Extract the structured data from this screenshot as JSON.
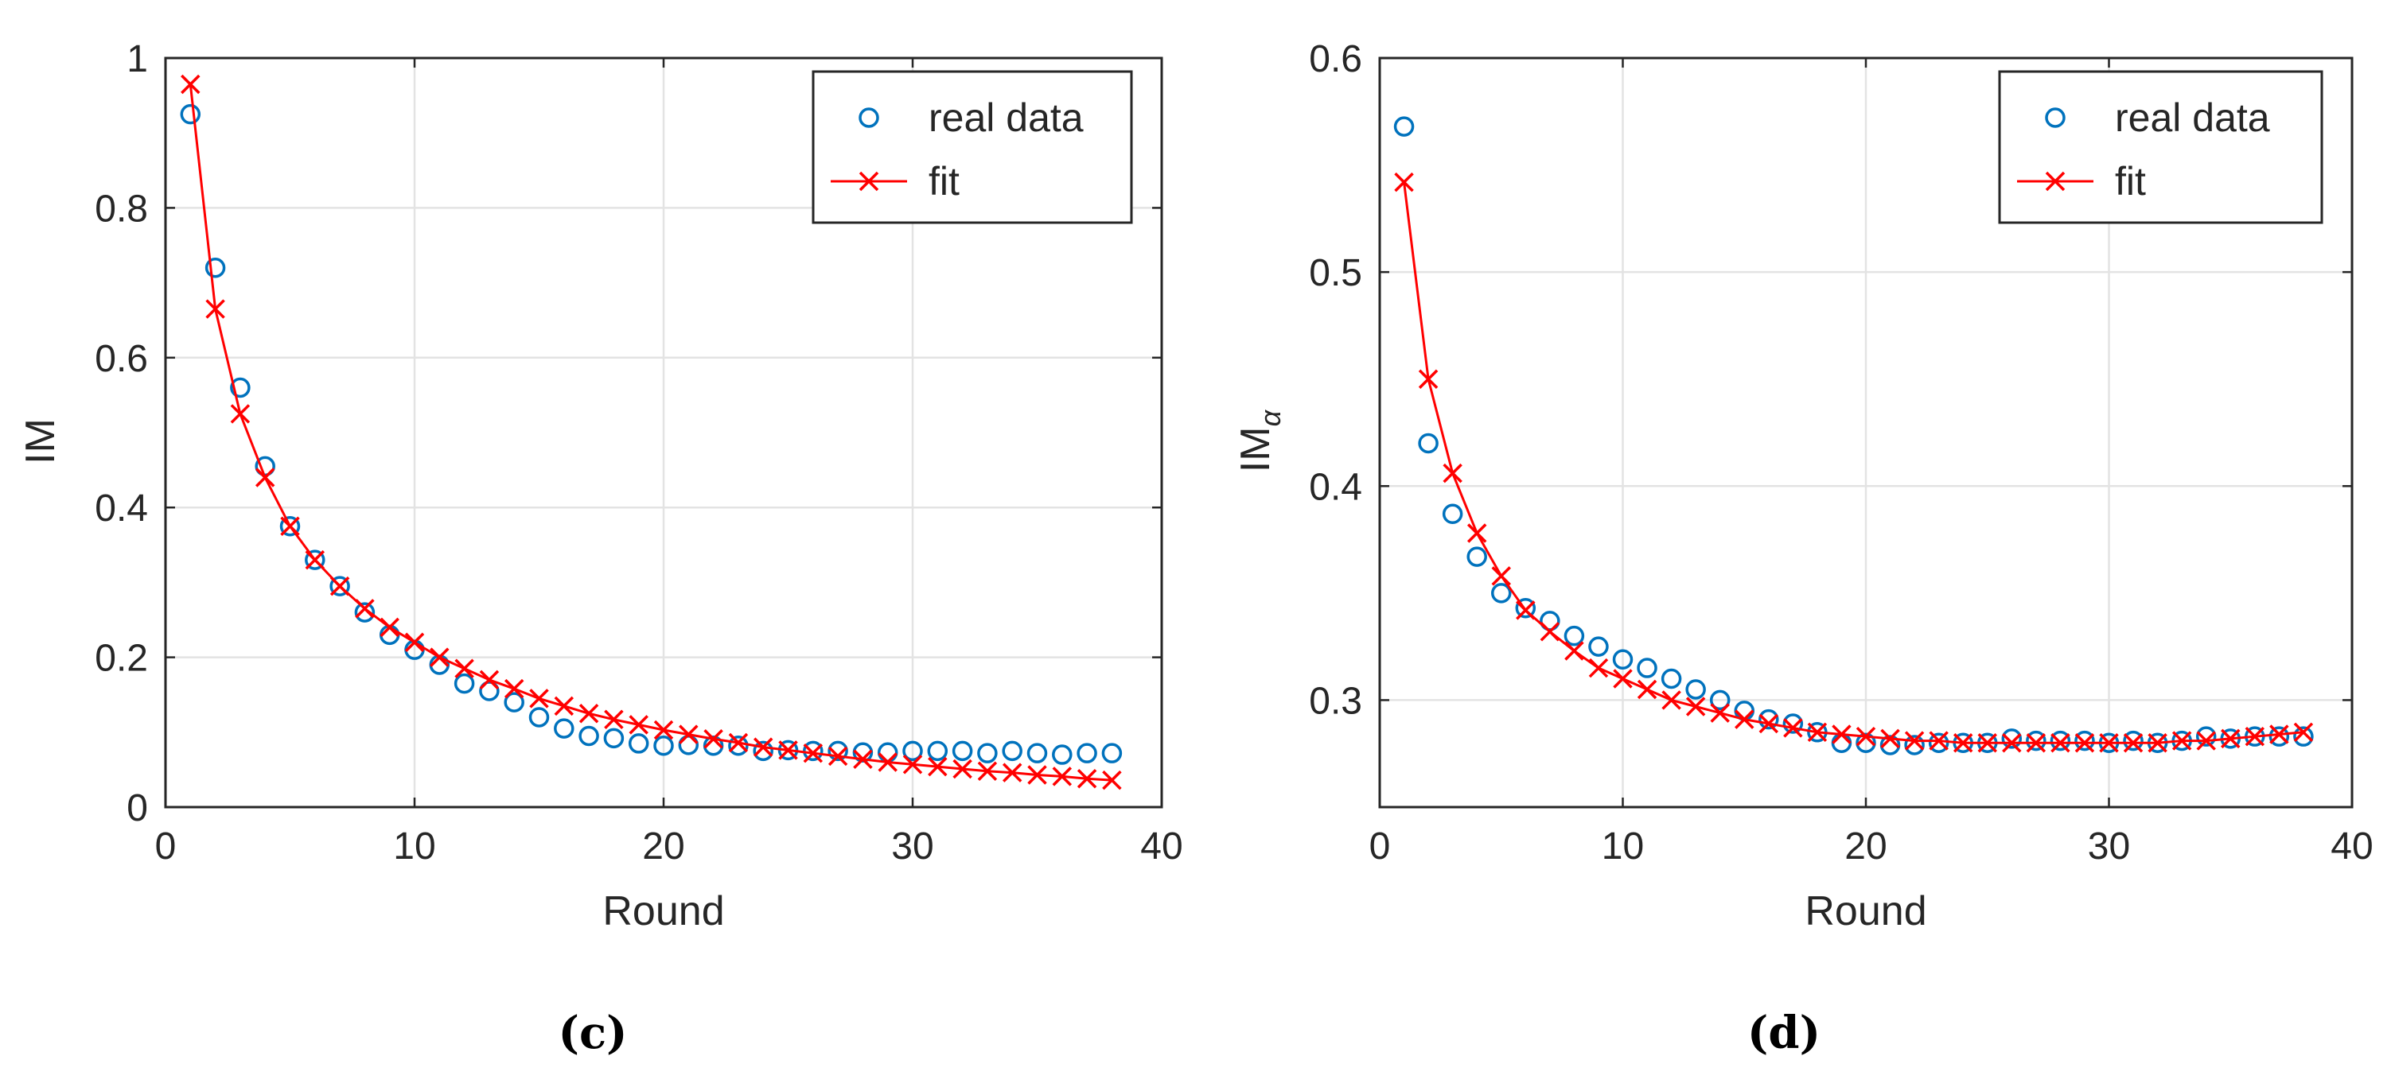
{
  "chart_data": [
    {
      "type": "scatter",
      "xlabel": "Round",
      "ylabel": "IM",
      "ylabel_sub": "",
      "caption": "(c)",
      "xlim": [
        0,
        40
      ],
      "ylim": [
        0,
        1
      ],
      "xticks": [
        0,
        10,
        20,
        30,
        40
      ],
      "xtick_labels": [
        "0",
        "10",
        "20",
        "30",
        "40"
      ],
      "yticks": [
        0,
        0.2,
        0.4,
        0.6,
        0.8,
        1
      ],
      "ytick_labels": [
        "0",
        "0.2",
        "0.4",
        "0.6",
        "0.8",
        "1"
      ],
      "grid": true,
      "legend": {
        "position": "top-right",
        "entries": [
          "real data",
          "fit"
        ]
      },
      "x": [
        1,
        2,
        3,
        4,
        5,
        6,
        7,
        8,
        9,
        10,
        11,
        12,
        13,
        14,
        15,
        16,
        17,
        18,
        19,
        20,
        21,
        22,
        23,
        24,
        25,
        26,
        27,
        28,
        29,
        30,
        31,
        32,
        33,
        34,
        35,
        36,
        37,
        38
      ],
      "series": [
        {
          "name": "real data",
          "style": "circle",
          "color": "#0072bd",
          "values": [
            0.925,
            0.72,
            0.56,
            0.455,
            0.375,
            0.33,
            0.295,
            0.26,
            0.23,
            0.21,
            0.19,
            0.165,
            0.155,
            0.14,
            0.12,
            0.105,
            0.095,
            0.092,
            0.085,
            0.082,
            0.083,
            0.082,
            0.082,
            0.075,
            0.076,
            0.075,
            0.075,
            0.073,
            0.073,
            0.075,
            0.075,
            0.075,
            0.072,
            0.075,
            0.072,
            0.07,
            0.072,
            0.072
          ]
        },
        {
          "name": "fit",
          "style": "line-x",
          "color": "#ff0000",
          "values": [
            0.965,
            0.665,
            0.525,
            0.44,
            0.375,
            0.33,
            0.295,
            0.265,
            0.24,
            0.22,
            0.2,
            0.185,
            0.17,
            0.158,
            0.145,
            0.135,
            0.125,
            0.117,
            0.11,
            0.103,
            0.097,
            0.091,
            0.086,
            0.08,
            0.076,
            0.072,
            0.068,
            0.064,
            0.06,
            0.057,
            0.054,
            0.051,
            0.048,
            0.046,
            0.043,
            0.041,
            0.038,
            0.036
          ]
        }
      ]
    },
    {
      "type": "scatter",
      "xlabel": "Round",
      "ylabel": "IM",
      "ylabel_sub": "α",
      "caption": "(d)",
      "xlim": [
        0,
        40
      ],
      "ylim": [
        0.25,
        0.6
      ],
      "xticks": [
        0,
        10,
        20,
        30,
        40
      ],
      "xtick_labels": [
        "0",
        "10",
        "20",
        "30",
        "40"
      ],
      "yticks": [
        0.3,
        0.4,
        0.5,
        0.6
      ],
      "ytick_labels": [
        "0.3",
        "0.4",
        "0.5",
        "0.6"
      ],
      "grid": true,
      "legend": {
        "position": "top-right",
        "entries": [
          "real data",
          "fit"
        ]
      },
      "x": [
        1,
        2,
        3,
        4,
        5,
        6,
        7,
        8,
        9,
        10,
        11,
        12,
        13,
        14,
        15,
        16,
        17,
        18,
        19,
        20,
        21,
        22,
        23,
        24,
        25,
        26,
        27,
        28,
        29,
        30,
        31,
        32,
        33,
        34,
        35,
        36,
        37,
        38
      ],
      "series": [
        {
          "name": "real data",
          "style": "circle",
          "color": "#0072bd",
          "values": [
            0.568,
            0.42,
            0.387,
            0.367,
            0.35,
            0.343,
            0.337,
            0.33,
            0.325,
            0.319,
            0.315,
            0.31,
            0.305,
            0.3,
            0.295,
            0.291,
            0.289,
            0.285,
            0.28,
            0.28,
            0.279,
            0.279,
            0.28,
            0.28,
            0.28,
            0.282,
            0.281,
            0.281,
            0.281,
            0.28,
            0.281,
            0.28,
            0.281,
            0.283,
            0.282,
            0.283,
            0.283,
            0.283
          ]
        },
        {
          "name": "fit",
          "style": "line-x",
          "color": "#ff0000",
          "values": [
            0.542,
            0.45,
            0.406,
            0.378,
            0.358,
            0.342,
            0.332,
            0.323,
            0.315,
            0.31,
            0.305,
            0.3,
            0.297,
            0.294,
            0.291,
            0.289,
            0.287,
            0.285,
            0.284,
            0.283,
            0.282,
            0.281,
            0.281,
            0.28,
            0.28,
            0.28,
            0.28,
            0.28,
            0.28,
            0.28,
            0.28,
            0.28,
            0.281,
            0.281,
            0.282,
            0.283,
            0.284,
            0.285
          ]
        }
      ]
    }
  ]
}
